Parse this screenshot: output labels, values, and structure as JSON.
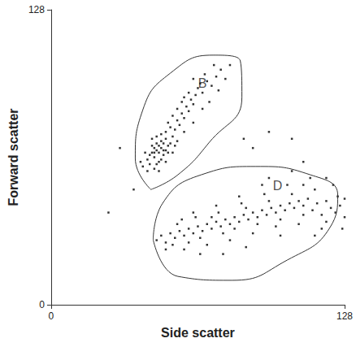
{
  "chart_data": {
    "type": "scatter",
    "x_label": "Side scatter",
    "y_label": "Forward scatter",
    "xlim": [
      0,
      128
    ],
    "ylim": [
      0,
      128
    ],
    "xticks": [
      0,
      128
    ],
    "yticks": [
      0,
      128
    ],
    "grid": false,
    "series": [
      {
        "color": "#000000",
        "marker": "square",
        "points": [
          [
            40,
            60
          ],
          [
            42,
            63
          ],
          [
            43,
            65
          ],
          [
            44,
            66
          ],
          [
            45,
            68
          ],
          [
            46,
            67
          ],
          [
            47,
            66
          ],
          [
            48,
            68
          ],
          [
            46,
            70
          ],
          [
            45,
            64
          ],
          [
            47,
            62
          ],
          [
            49,
            65
          ],
          [
            50,
            67
          ],
          [
            48,
            71
          ],
          [
            44,
            69
          ],
          [
            43,
            61
          ],
          [
            45,
            59
          ],
          [
            49,
            70
          ],
          [
            51,
            69
          ],
          [
            50,
            72
          ],
          [
            52,
            70
          ],
          [
            46,
            73
          ],
          [
            48,
            74
          ],
          [
            50,
            75
          ],
          [
            53,
            73
          ],
          [
            52,
            77
          ],
          [
            54,
            76
          ],
          [
            51,
            79
          ],
          [
            55,
            80
          ],
          [
            56,
            78
          ],
          [
            53,
            82
          ],
          [
            57,
            83
          ],
          [
            58,
            81
          ],
          [
            55,
            85
          ],
          [
            59,
            86
          ],
          [
            60,
            84
          ],
          [
            57,
            88
          ],
          [
            61,
            89
          ],
          [
            62,
            87
          ],
          [
            63,
            91
          ],
          [
            60,
            92
          ],
          [
            64,
            94
          ],
          [
            66,
            92
          ],
          [
            65,
            96
          ],
          [
            68,
            97
          ],
          [
            70,
            95
          ],
          [
            67,
            100
          ],
          [
            72,
            99
          ],
          [
            74,
            102
          ],
          [
            71,
            104
          ],
          [
            76,
            98
          ],
          [
            42,
            58
          ],
          [
            41,
            66
          ],
          [
            47,
            58
          ],
          [
            53,
            66
          ],
          [
            55,
            71
          ],
          [
            58,
            75
          ],
          [
            62,
            79
          ],
          [
            66,
            85
          ],
          [
            44,
            72
          ],
          [
            39,
            62
          ],
          [
            50,
            62
          ],
          [
            54,
            69
          ],
          [
            58,
            90
          ],
          [
            69,
            88
          ],
          [
            73,
            93
          ],
          [
            62,
            98
          ],
          [
            78,
            104
          ],
          [
            46,
            61
          ],
          [
            48,
            63
          ],
          [
            45,
            66
          ],
          [
            47,
            69
          ],
          [
            49,
            67
          ],
          [
            51,
            66
          ],
          [
            46,
            28
          ],
          [
            48,
            30
          ],
          [
            50,
            27
          ],
          [
            52,
            31
          ],
          [
            54,
            29
          ],
          [
            56,
            32
          ],
          [
            58,
            30
          ],
          [
            60,
            33
          ],
          [
            62,
            31
          ],
          [
            64,
            34
          ],
          [
            66,
            32
          ],
          [
            68,
            35
          ],
          [
            70,
            33
          ],
          [
            72,
            36
          ],
          [
            74,
            34
          ],
          [
            76,
            37
          ],
          [
            78,
            35
          ],
          [
            80,
            38
          ],
          [
            82,
            36
          ],
          [
            84,
            39
          ],
          [
            86,
            37
          ],
          [
            88,
            40
          ],
          [
            90,
            38
          ],
          [
            92,
            41
          ],
          [
            94,
            39
          ],
          [
            96,
            42
          ],
          [
            98,
            40
          ],
          [
            100,
            43
          ],
          [
            102,
            41
          ],
          [
            104,
            44
          ],
          [
            106,
            42
          ],
          [
            108,
            45
          ],
          [
            110,
            43
          ],
          [
            112,
            46
          ],
          [
            114,
            41
          ],
          [
            116,
            44
          ],
          [
            118,
            39
          ],
          [
            120,
            45
          ],
          [
            122,
            42
          ],
          [
            124,
            40
          ],
          [
            126,
            43
          ],
          [
            128,
            38
          ],
          [
            55,
            35
          ],
          [
            60,
            27
          ],
          [
            65,
            29
          ],
          [
            70,
            38
          ],
          [
            75,
            31
          ],
          [
            80,
            33
          ],
          [
            85,
            42
          ],
          [
            90,
            35
          ],
          [
            95,
            45
          ],
          [
            100,
            37
          ],
          [
            105,
            48
          ],
          [
            110,
            39
          ],
          [
            115,
            50
          ],
          [
            120,
            36
          ],
          [
            125,
            47
          ],
          [
            127,
            33
          ],
          [
            58,
            24
          ],
          [
            68,
            26
          ],
          [
            78,
            28
          ],
          [
            88,
            31
          ],
          [
            98,
            34
          ],
          [
            108,
            35
          ],
          [
            118,
            33
          ],
          [
            63,
            38
          ],
          [
            73,
            40
          ],
          [
            83,
            44
          ],
          [
            93,
            48
          ],
          [
            103,
            52
          ],
          [
            113,
            55
          ],
          [
            123,
            52
          ],
          [
            95,
            55
          ],
          [
            105,
            58
          ],
          [
            115,
            30
          ],
          [
            85,
            25
          ],
          [
            75,
            22
          ],
          [
            65,
            22
          ],
          [
            50,
            24
          ],
          [
            62,
            40
          ],
          [
            100,
            30
          ],
          [
            110,
            52
          ],
          [
            120,
            55
          ],
          [
            128,
            46
          ],
          [
            92,
            52
          ],
          [
            82,
            47
          ],
          [
            72,
            43
          ],
          [
            53,
            26
          ],
          [
            57,
            37
          ],
          [
            30,
            68
          ],
          [
            36,
            50
          ],
          [
            25,
            40
          ],
          [
            88,
            68
          ],
          [
            95,
            75
          ],
          [
            110,
            62
          ],
          [
            105,
            72
          ],
          [
            84,
            72
          ]
        ]
      }
    ],
    "regions": [
      {
        "label": "B",
        "label_at": [
          66,
          96
        ],
        "points": [
          [
            43.5,
            50
          ],
          [
            36.7,
            63.5
          ],
          [
            40,
            84.6
          ],
          [
            52,
            100.5
          ],
          [
            70.6,
            108.3
          ],
          [
            82.5,
            105.8
          ],
          [
            83.2,
            90
          ],
          [
            69,
            70.5
          ],
          [
            55.3,
            56.4
          ]
        ]
      },
      {
        "label": "D",
        "label_at": [
          98.8,
          51.8
        ],
        "points": [
          [
            44.5,
            28.2
          ],
          [
            48.6,
            44
          ],
          [
            65.5,
            56.4
          ],
          [
            89.3,
            60
          ],
          [
            113,
            56.4
          ],
          [
            125,
            47.6
          ],
          [
            121.6,
            33.5
          ],
          [
            103,
            19.4
          ],
          [
            79,
            10.6
          ],
          [
            55.3,
            12.3
          ]
        ]
      }
    ]
  }
}
